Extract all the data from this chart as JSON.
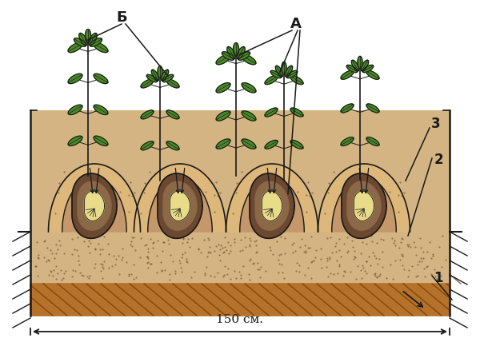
{
  "bg_color": "#ffffff",
  "soil_color": "#d4b483",
  "soil_light": "#e0c898",
  "bottom_layer_color": "#b5722a",
  "mound_light": "#deb87a",
  "mound_mid": "#c4986a",
  "mound_dark": "#a07848",
  "tuber_outer": "#6b4830",
  "tuber_mid": "#8b6848",
  "tuber_inner": "#e8dc88",
  "stem_color": "#1a1a1a",
  "leaf_color": "#4a8a28",
  "leaf_dark": "#386820",
  "outline_color": "#1a1a1a",
  "label_A": "А",
  "label_B": "Б",
  "label_1": "1",
  "label_2": "2",
  "label_3": "3",
  "dimension_text": "150 см.",
  "figsize": [
    6.0,
    4.28
  ],
  "dpi": 100
}
